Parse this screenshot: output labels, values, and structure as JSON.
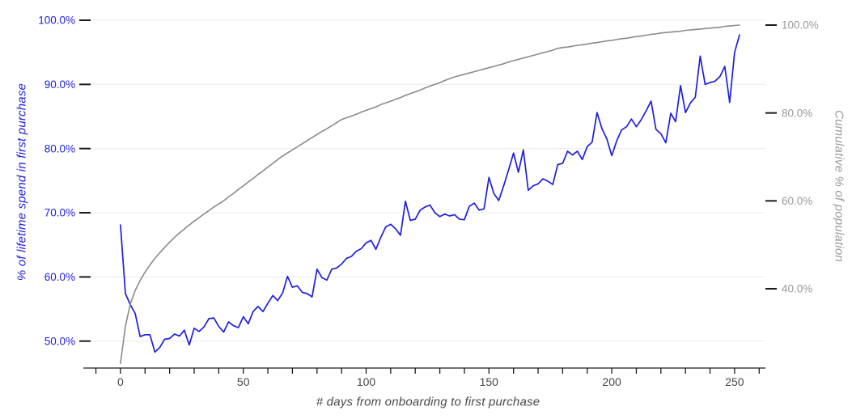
{
  "chart_data": {
    "type": "line",
    "title": "",
    "x_axis": {
      "label": "# days from onboarding to first purchase",
      "labeled_ticks": [
        0,
        50,
        100,
        150,
        200,
        250
      ],
      "minor_tick_start": -10,
      "minor_tick_end": 260,
      "minor_tick_step": 10,
      "data_range_days": [
        0,
        252
      ],
      "tick_label_color": "#474747"
    },
    "left_axis": {
      "label": "% of lifetime spend in first purchase",
      "tick_values": [
        50,
        60,
        70,
        80,
        90,
        100
      ],
      "tick_labels": [
        "50.0%",
        "60.0%",
        "70.0%",
        "80.0%",
        "90.0%",
        "100.0%"
      ],
      "range": [
        50,
        100
      ],
      "color": "#1e1ee0"
    },
    "right_axis": {
      "label": "Cumulative % of population",
      "tick_values": [
        40,
        60,
        80,
        100
      ],
      "tick_labels": [
        "40.0%",
        "60.0%",
        "80.0%",
        "100.0%"
      ],
      "range": [
        40,
        100
      ],
      "color": "#9a9a9a"
    },
    "grid": {
      "horizontal_at_left_ticks": true,
      "color": "#ebebeb",
      "vertical": false
    },
    "axis_line_color": "#1a1a1a",
    "legend": "none",
    "series": [
      {
        "name": "pct-of-lifetime-spend-in-first-purchase",
        "axis": "left",
        "color": "#1e1ee0",
        "x_start": 0,
        "x_step": 2,
        "values": [
          68.1,
          57.4,
          55.7,
          54.3,
          50.7,
          51.0,
          51.0,
          48.3,
          49.0,
          50.3,
          50.4,
          51.1,
          50.8,
          51.7,
          49.4,
          52.0,
          51.5,
          52.2,
          53.5,
          53.6,
          52.3,
          51.4,
          53.0,
          52.4,
          52.1,
          53.8,
          52.7,
          54.6,
          55.4,
          54.6,
          55.9,
          57.1,
          56.3,
          57.5,
          60.1,
          58.4,
          58.6,
          57.6,
          57.4,
          56.9,
          61.2,
          59.9,
          59.5,
          61.2,
          61.4,
          62.0,
          62.9,
          63.2,
          64.0,
          64.4,
          65.3,
          65.7,
          64.3,
          66.2,
          67.8,
          68.2,
          67.5,
          66.5,
          71.8,
          68.8,
          69.0,
          70.4,
          70.9,
          71.2,
          70.0,
          69.4,
          69.8,
          69.5,
          69.7,
          69.0,
          68.9,
          71.0,
          71.5,
          70.4,
          70.6,
          75.5,
          73.0,
          71.9,
          74.2,
          76.7,
          79.3,
          76.3,
          79.8,
          73.5,
          74.2,
          74.5,
          75.3,
          74.9,
          74.4,
          77.5,
          77.7,
          79.6,
          79.0,
          79.6,
          78.3,
          80.3,
          81.0,
          85.6,
          83.1,
          81.5,
          78.9,
          81.2,
          82.9,
          83.4,
          84.6,
          83.4,
          84.5,
          85.9,
          87.4,
          83.0,
          82.3,
          80.9,
          85.5,
          84.2,
          89.8,
          85.6,
          87.1,
          88.0,
          94.4,
          90.0,
          90.3,
          90.5,
          91.2,
          92.8,
          87.2,
          95.0,
          97.7
        ]
      },
      {
        "name": "cumulative-pct-of-population",
        "axis": "right",
        "color": "#8a8a8a",
        "x_start": 0,
        "x_step": 2,
        "values": [
          23.0,
          31.5,
          36.5,
          39.6,
          41.9,
          43.8,
          45.4,
          46.9,
          48.2,
          49.4,
          50.6,
          51.7,
          52.7,
          53.6,
          54.5,
          55.4,
          56.2,
          57.0,
          57.8,
          58.6,
          59.3,
          60.0,
          60.9,
          61.7,
          62.6,
          63.4,
          64.3,
          65.1,
          66.0,
          66.8,
          67.7,
          68.5,
          69.4,
          70.2,
          70.9,
          71.6,
          72.3,
          73.0,
          73.7,
          74.4,
          75.1,
          75.8,
          76.4,
          77.1,
          77.8,
          78.5,
          78.9,
          79.3,
          79.7,
          80.2,
          80.6,
          81.0,
          81.4,
          81.9,
          82.3,
          82.7,
          83.1,
          83.5,
          84.0,
          84.4,
          84.8,
          85.2,
          85.7,
          86.1,
          86.5,
          86.9,
          87.4,
          87.8,
          88.2,
          88.5,
          88.8,
          89.1,
          89.4,
          89.7,
          90.0,
          90.3,
          90.6,
          90.9,
          91.2,
          91.6,
          91.9,
          92.2,
          92.5,
          92.8,
          93.1,
          93.4,
          93.7,
          94.0,
          94.3,
          94.7,
          94.9,
          95.0,
          95.2,
          95.4,
          95.5,
          95.7,
          95.9,
          96.0,
          96.2,
          96.4,
          96.5,
          96.7,
          96.9,
          97.0,
          97.2,
          97.4,
          97.5,
          97.7,
          97.9,
          98.0,
          98.2,
          98.3,
          98.4,
          98.5,
          98.6,
          98.8,
          98.9,
          99.0,
          99.1,
          99.2,
          99.3,
          99.4,
          99.5,
          99.7,
          99.8,
          99.9,
          100.0
        ]
      }
    ]
  }
}
